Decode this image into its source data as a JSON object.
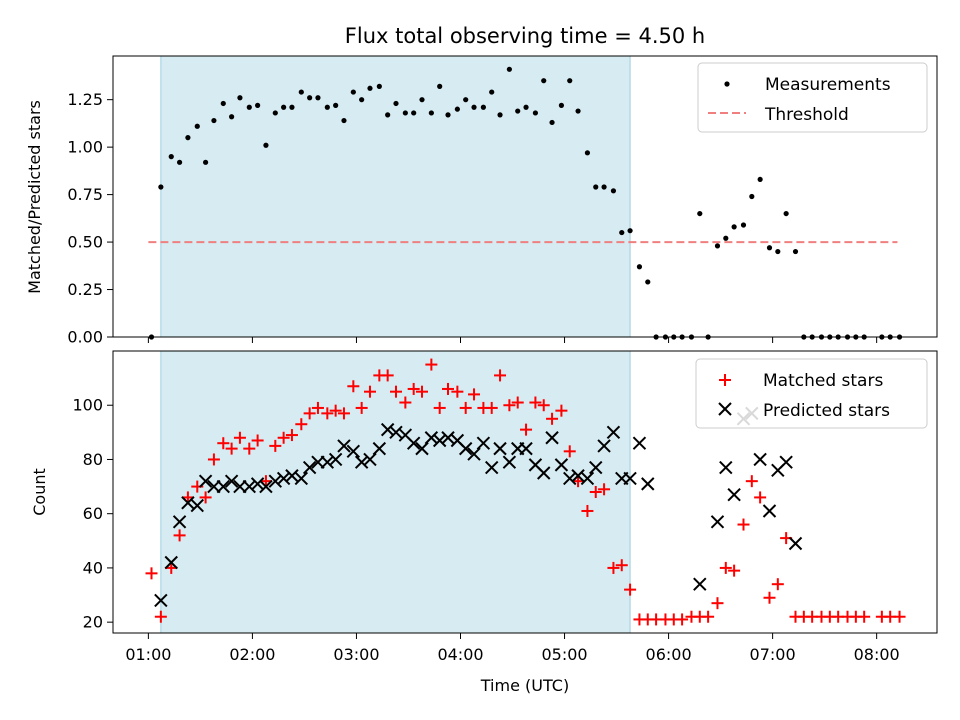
{
  "chart_data": [
    {
      "type": "scatter",
      "title": "Flux total observing time = 4.50 h",
      "xlabel": "",
      "ylabel": "Matched/Predicted stars",
      "xlim": [
        0.66,
        8.58
      ],
      "ylim": [
        0,
        1.48
      ],
      "yticks": [
        "0.00",
        "0.25",
        "0.50",
        "0.75",
        "1.00",
        "1.25"
      ],
      "ytick_values": [
        0,
        0.25,
        0.5,
        0.75,
        1.0,
        1.25
      ],
      "shaded_interval": [
        1.12,
        5.63
      ],
      "legend_position": "top-right",
      "series": [
        {
          "name": "Measurements",
          "marker": "dot",
          "color": "#000000",
          "x": [
            1.03,
            1.12,
            1.22,
            1.3,
            1.38,
            1.47,
            1.55,
            1.63,
            1.72,
            1.8,
            1.88,
            1.97,
            2.05,
            2.13,
            2.22,
            2.3,
            2.38,
            2.47,
            2.55,
            2.63,
            2.72,
            2.8,
            2.88,
            2.97,
            3.05,
            3.13,
            3.22,
            3.3,
            3.38,
            3.47,
            3.55,
            3.63,
            3.72,
            3.8,
            3.88,
            3.97,
            4.05,
            4.13,
            4.22,
            4.3,
            4.38,
            4.47,
            4.55,
            4.63,
            4.72,
            4.8,
            4.88,
            4.97,
            5.05,
            5.13,
            5.22,
            5.3,
            5.38,
            5.47,
            5.55,
            5.63,
            5.72,
            5.8,
            5.88,
            5.97,
            6.05,
            6.13,
            6.22,
            6.3,
            6.38,
            6.47,
            6.55,
            6.63,
            6.72,
            6.8,
            6.88,
            6.97,
            7.05,
            7.13,
            7.22,
            7.3,
            7.38,
            7.47,
            7.55,
            7.63,
            7.72,
            7.8,
            7.88,
            7.97,
            8.05,
            8.13,
            8.22
          ],
          "y": [
            0.0,
            0.79,
            0.95,
            0.92,
            1.05,
            1.11,
            0.92,
            1.14,
            1.23,
            1.16,
            1.26,
            1.21,
            1.22,
            1.01,
            1.18,
            1.21,
            1.21,
            1.29,
            1.26,
            1.26,
            1.21,
            1.22,
            1.14,
            1.29,
            1.25,
            1.31,
            1.32,
            1.17,
            1.23,
            1.18,
            1.18,
            1.25,
            1.18,
            1.32,
            1.17,
            1.2,
            1.25,
            1.21,
            1.21,
            1.29,
            1.17,
            1.41,
            1.19,
            1.21,
            1.18,
            1.35,
            1.13,
            1.22,
            1.35,
            1.19,
            0.97,
            0.79,
            0.79,
            0.77,
            0.55,
            0.56,
            0.37,
            0.29,
            0.0,
            0.0,
            0.0,
            0.0,
            0.0,
            0.65,
            0.0,
            0.48,
            0.52,
            0.58,
            0.59,
            0.74,
            0.83,
            0.47,
            0.45,
            0.65,
            0.45,
            0.0,
            0.0,
            0.0,
            0.0,
            0.0,
            0.0,
            0.0,
            0.0,
            null,
            0.0,
            0.0,
            0.0
          ]
        },
        {
          "name": "Threshold",
          "marker": "dashed-line",
          "color": "#f08080",
          "x": [
            1.0,
            8.2
          ],
          "y": [
            0.5,
            0.5
          ]
        }
      ]
    },
    {
      "type": "scatter",
      "title": "",
      "xlabel": "Time (UTC)",
      "ylabel": "Count",
      "xlim": [
        0.66,
        8.58
      ],
      "ylim": [
        16,
        120
      ],
      "xticks": [
        "01:00",
        "02:00",
        "03:00",
        "04:00",
        "05:00",
        "06:00",
        "07:00",
        "08:00"
      ],
      "xtick_values": [
        1,
        2,
        3,
        4,
        5,
        6,
        7,
        8
      ],
      "yticks": [
        "20",
        "40",
        "60",
        "80",
        "100"
      ],
      "ytick_values": [
        20,
        40,
        60,
        80,
        100
      ],
      "shaded_interval": [
        1.12,
        5.63
      ],
      "legend_position": "top-right",
      "series": [
        {
          "name": "Matched stars",
          "marker": "plus",
          "color": "#ff0000",
          "x": [
            1.03,
            1.12,
            1.22,
            1.3,
            1.38,
            1.47,
            1.55,
            1.63,
            1.72,
            1.8,
            1.88,
            1.97,
            2.05,
            2.13,
            2.22,
            2.3,
            2.38,
            2.47,
            2.55,
            2.63,
            2.72,
            2.8,
            2.88,
            2.97,
            3.05,
            3.13,
            3.22,
            3.3,
            3.38,
            3.47,
            3.55,
            3.63,
            3.72,
            3.8,
            3.88,
            3.97,
            4.05,
            4.13,
            4.22,
            4.3,
            4.38,
            4.47,
            4.55,
            4.63,
            4.72,
            4.8,
            4.88,
            4.97,
            5.05,
            5.13,
            5.22,
            5.3,
            5.38,
            5.47,
            5.55,
            5.63,
            5.72,
            5.8,
            5.88,
            5.97,
            6.05,
            6.13,
            6.22,
            6.3,
            6.38,
            6.47,
            6.55,
            6.63,
            6.72,
            6.8,
            6.88,
            6.97,
            7.05,
            7.13,
            7.22,
            7.3,
            7.38,
            7.47,
            7.55,
            7.63,
            7.72,
            7.8,
            7.88,
            7.97,
            8.05,
            8.13,
            8.22
          ],
          "y": [
            38,
            22,
            40,
            52,
            66,
            70,
            66,
            80,
            86,
            84,
            88,
            84,
            87,
            72,
            85,
            88,
            89,
            93,
            97,
            99,
            97,
            98,
            97,
            107,
            99,
            105,
            111,
            111,
            105,
            101,
            106,
            105,
            115,
            99,
            106,
            105,
            99,
            104,
            99,
            99,
            111,
            100,
            101,
            91,
            101,
            100,
            95,
            98,
            83,
            72,
            61,
            68,
            69,
            40,
            41,
            32,
            21,
            21,
            21,
            21,
            21,
            21,
            22,
            22,
            22,
            27,
            40,
            39,
            56,
            72,
            66,
            29,
            34,
            51,
            22,
            22,
            22,
            22,
            22,
            22,
            22,
            22,
            22,
            null,
            22,
            22,
            22
          ]
        },
        {
          "name": "Predicted stars",
          "marker": "x",
          "color": "#000000",
          "x": [
            1.12,
            1.22,
            1.3,
            1.38,
            1.47,
            1.55,
            1.63,
            1.72,
            1.8,
            1.88,
            1.97,
            2.05,
            2.13,
            2.22,
            2.3,
            2.38,
            2.47,
            2.55,
            2.63,
            2.72,
            2.8,
            2.88,
            2.97,
            3.05,
            3.13,
            3.22,
            3.3,
            3.38,
            3.47,
            3.55,
            3.63,
            3.72,
            3.8,
            3.88,
            3.97,
            4.05,
            4.13,
            4.22,
            4.3,
            4.38,
            4.47,
            4.55,
            4.63,
            4.72,
            4.8,
            4.88,
            4.97,
            5.05,
            5.13,
            5.22,
            5.3,
            5.38,
            5.47,
            5.55,
            5.63,
            5.72,
            5.8,
            6.3,
            6.47,
            6.55,
            6.63,
            6.72,
            6.8,
            6.88,
            6.97,
            7.05,
            7.13,
            7.22
          ],
          "y": [
            28,
            42,
            57,
            64,
            63,
            72,
            70,
            70,
            72,
            70,
            70,
            71,
            70,
            72,
            73,
            74,
            73,
            77,
            79,
            79,
            80,
            85,
            83,
            79,
            80,
            84,
            91,
            90,
            89,
            86,
            84,
            88,
            87,
            88,
            87,
            84,
            82,
            86,
            77,
            84,
            79,
            84,
            84,
            78,
            75,
            88,
            78,
            73,
            74,
            73,
            77,
            85,
            90,
            73,
            73,
            86,
            71,
            34,
            57,
            77,
            67,
            95,
            97,
            80,
            61,
            76,
            79,
            49
          ]
        }
      ]
    }
  ]
}
